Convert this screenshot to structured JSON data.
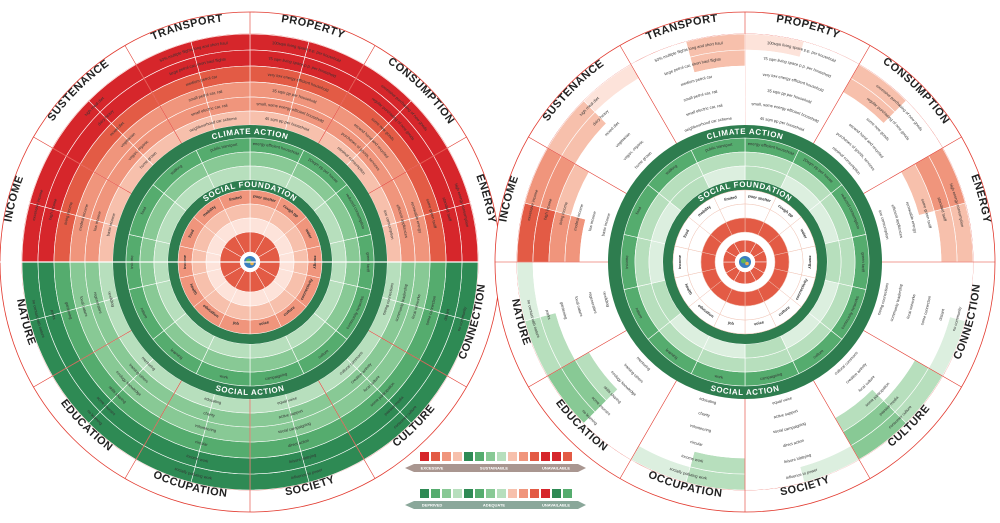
{
  "palette": {
    "red": [
      "#ffffff",
      "#fde3da",
      "#f7c0ac",
      "#f0957c",
      "#e35b45",
      "#d6262b"
    ],
    "green": [
      "#ffffff",
      "#dcefdf",
      "#b7dfbd",
      "#88c995",
      "#55ac6e",
      "#2e8a54"
    ],
    "green_ring": "#2e7d4f",
    "outline": "#e23a2f"
  },
  "sectors": [
    "PROPERTY",
    "CONSUMPTION",
    "ENERGY",
    "CONNECTION",
    "CULTURE",
    "SOCIETY",
    "OCCUPATION",
    "EDUCATION",
    "NATURE",
    "INCOME",
    "SUSTENANCE",
    "TRANSPORT"
  ],
  "bands": {
    "climate": "CLIMATE ACTION",
    "social_foundation": "SOCIAL FOUNDATION",
    "social_action": "SOCIAL ACTION"
  },
  "cells": [
    [
      "100sqm living space p.p. per household",
      "75 sqm living space p.p. per household",
      "very low energy efficient household",
      "35 sqm pp per household",
      "small, some energy efficient household",
      "45 sqm pp per household"
    ],
    [
      "excessive purchasing of new goods",
      "regular purchasing of new goods",
      "some new goods",
      "second hand and recycled",
      "purchases of goods, services",
      "minimal consumption"
    ],
    [
      "high energy consumption",
      "standard tariff",
      "some green tariff",
      "renewable energy",
      "efficient appliances",
      "low consumption"
    ],
    [
      "no community",
      "distant",
      "some connection",
      "local networks",
      "community leadership",
      "caring connections"
    ],
    [
      "consumer culture",
      "passive media",
      "some participation",
      "local culture",
      "creative activity",
      "cultural commons"
    ],
    [
      "influence to power",
      "leisure lobbying",
      "direct action",
      "social campaigning",
      "active support",
      "equal voice"
    ],
    [
      "socially polluting work",
      "income work",
      "circular",
      "volunteering",
      "charity",
      "educating"
    ],
    [
      "no learning",
      "some courses",
      "skills sharing",
      "ecology knowledge",
      "training others",
      "mentoring"
    ],
    [
      "no contact with nature",
      "parks",
      "gardening",
      "local nature",
      "regenerative",
      "rewilding"
    ],
    [
      "excessive income",
      "high income",
      "living income",
      "modest income",
      "low income",
      "basic income"
    ],
    [
      "high meat diet",
      "dairy heavy",
      "mixed diet",
      "vegetarian",
      "vegan, organic",
      "home grown"
    ],
    [
      "50% multiple flights long and short haul",
      "large petrol car, short haul flights",
      "medium petrol car",
      "small petrol car, rail",
      "small electric car, rail",
      "neighbourhood car scheme"
    ]
  ],
  "climate_cells": [
    "energy efficient household",
    "20sqm pp per house",
    "reduced consumption",
    "green tariff",
    "community networks",
    "culture",
    "campaigning",
    "work",
    "learning",
    "nature",
    "income",
    "food",
    "walking",
    "public transport"
  ],
  "foundation_cells": [
    "poor shelter",
    "cough pp",
    "water",
    "energy",
    "connectivity",
    "culture",
    "voice",
    "job",
    "education",
    "health",
    "income",
    "food",
    "mobility",
    "limited"
  ],
  "left_wheel": {
    "levels": [
      5,
      5,
      4,
      4,
      3,
      3,
      5,
      5,
      4,
      4,
      3,
      3,
      4,
      4,
      3,
      3,
      2,
      2,
      5,
      5,
      4,
      4,
      3,
      3
    ]
  },
  "right_wheel": {
    "levels": [
      1,
      0,
      2,
      0,
      3,
      2,
      0,
      1,
      2,
      3,
      1,
      0,
      2,
      1,
      0,
      3,
      2,
      1,
      4,
      3,
      2,
      1,
      0,
      2
    ]
  },
  "legend": {
    "scale_labels_red": [
      "EXCESSIVE",
      "SUSTAINABLE",
      "UNAVAILABLE"
    ],
    "scale_labels_green": [
      "DEPRIVED",
      "ADEQUATE",
      "UNAVAILABLE"
    ]
  }
}
